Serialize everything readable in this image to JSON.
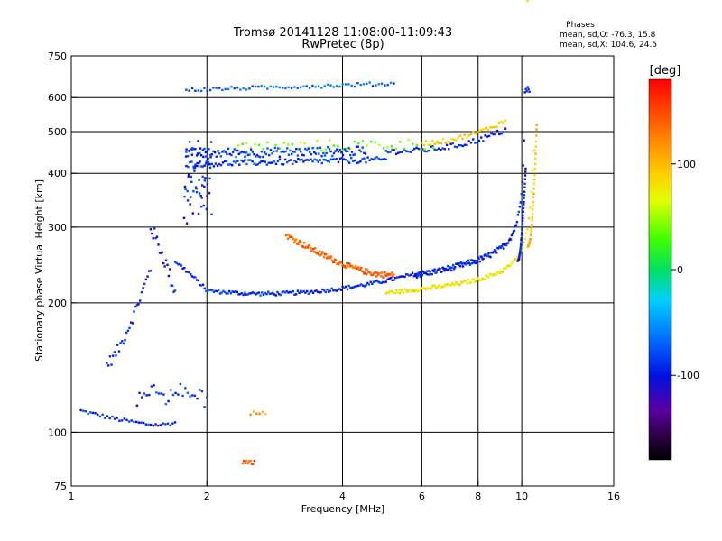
{
  "chart_data": {
    "type": "scatter",
    "title": "Tromsø 20141128 11:08:00-11:09:43",
    "subtitle": "RwPretec (8p)",
    "xlabel": "Frequency [MHz]",
    "ylabel": "Stationary phase Virtual Height [km]",
    "xscale": "log",
    "yscale": "log",
    "xlim": [
      1,
      16
    ],
    "ylim": [
      75,
      750
    ],
    "x_ticks": [
      1,
      2,
      4,
      6,
      8,
      10,
      16
    ],
    "y_ticks": [
      75,
      100,
      200,
      300,
      400,
      500,
      600,
      750
    ],
    "grid_x": [
      2,
      4,
      6,
      8,
      10
    ],
    "grid_y": [
      100,
      200,
      300,
      400,
      500,
      600
    ],
    "stats": {
      "heading": "Phases",
      "line1": "mean, sd,O: -76.3, 15.8",
      "line2": "mean, sd,X: 104.6, 24.5"
    },
    "colorbar": {
      "label": "[deg]",
      "min": -180,
      "max": 180,
      "ticks": [
        100,
        0,
        -100
      ]
    },
    "traces": [
      {
        "x_range": [
          1.05,
          1.7
        ],
        "h_fn": "e_low",
        "phase": -90,
        "n": 40,
        "jitter": 0.01
      },
      {
        "x_range": [
          1.2,
          1.5
        ],
        "h_fn": "f1_rise",
        "phase": -95,
        "n": 30,
        "jitter": 0.03
      },
      {
        "x_range": [
          1.5,
          1.7
        ],
        "h_fn": "f1_peak",
        "phase": -100,
        "n": 20,
        "jitter": 0.04
      },
      {
        "x_range": [
          1.7,
          6.0
        ],
        "h_fn": "f2_o_low",
        "phase": -90,
        "n": 160,
        "jitter": 0.01
      },
      {
        "x_range": [
          5.8,
          10.4
        ],
        "h_fn": "f2_o_rise",
        "phase": -95,
        "n": 130,
        "jitter": 0.015
      },
      {
        "x_range": [
          3.0,
          5.2
        ],
        "h_fn": "orange_x",
        "phase": 140,
        "n": 120,
        "jitter": 0.015
      },
      {
        "x_range": [
          5.0,
          10.7
        ],
        "h_fn": "f2_x_rise",
        "phase": 80,
        "n": 120,
        "jitter": 0.01
      },
      {
        "x_range": [
          1.8,
          5.0
        ],
        "h_fn": "f2_400",
        "phase": -85,
        "n": 110,
        "jitter": 0.015
      },
      {
        "x_range": [
          5.0,
          9.2
        ],
        "h_fn": "f2_400_rise",
        "phase": -90,
        "n": 60,
        "jitter": 0.015
      },
      {
        "x_range": [
          2.3,
          6.5
        ],
        "h_fn": "f2_460",
        "phase": 40,
        "n": 50,
        "jitter": 0.03
      },
      {
        "x_range": [
          1.8,
          4.5
        ],
        "h_fn": "f2_440",
        "phase": -85,
        "n": 120,
        "jitter": 0.025
      },
      {
        "x_range": [
          6.0,
          9.2
        ],
        "h_fn": "yellow_x_upper",
        "phase": 90,
        "n": 40,
        "jitter": 0.012
      },
      {
        "x_range": [
          1.8,
          5.2
        ],
        "h_fn": "f3_620",
        "phase": -70,
        "n": 70,
        "jitter": 0.01
      },
      {
        "x_range": [
          1.78,
          2.05
        ],
        "h_fn": "spread_400",
        "phase": -95,
        "n": 60,
        "jitter": 0.08
      },
      {
        "x_range": [
          1.4,
          2.0
        ],
        "h_fn": "es_120",
        "phase": -85,
        "n": 30,
        "jitter": 0.04
      },
      {
        "x_range": [
          2.4,
          2.55
        ],
        "h_fn": "const_85",
        "phase": 150,
        "n": 10,
        "jitter": 0.01
      },
      {
        "x_range": [
          2.5,
          2.7
        ],
        "h_fn": "const_110",
        "phase": 110,
        "n": 6,
        "jitter": 0.01
      },
      {
        "x_range": [
          9.8,
          10.2
        ],
        "h_fn": "vertical_blue",
        "phase": -100,
        "n": 40,
        "jitter": 0.005
      },
      {
        "x_range": [
          10.3,
          10.8
        ],
        "h_fn": "vertical_yellow",
        "phase": 100,
        "n": 40,
        "jitter": 0.005
      }
    ]
  }
}
